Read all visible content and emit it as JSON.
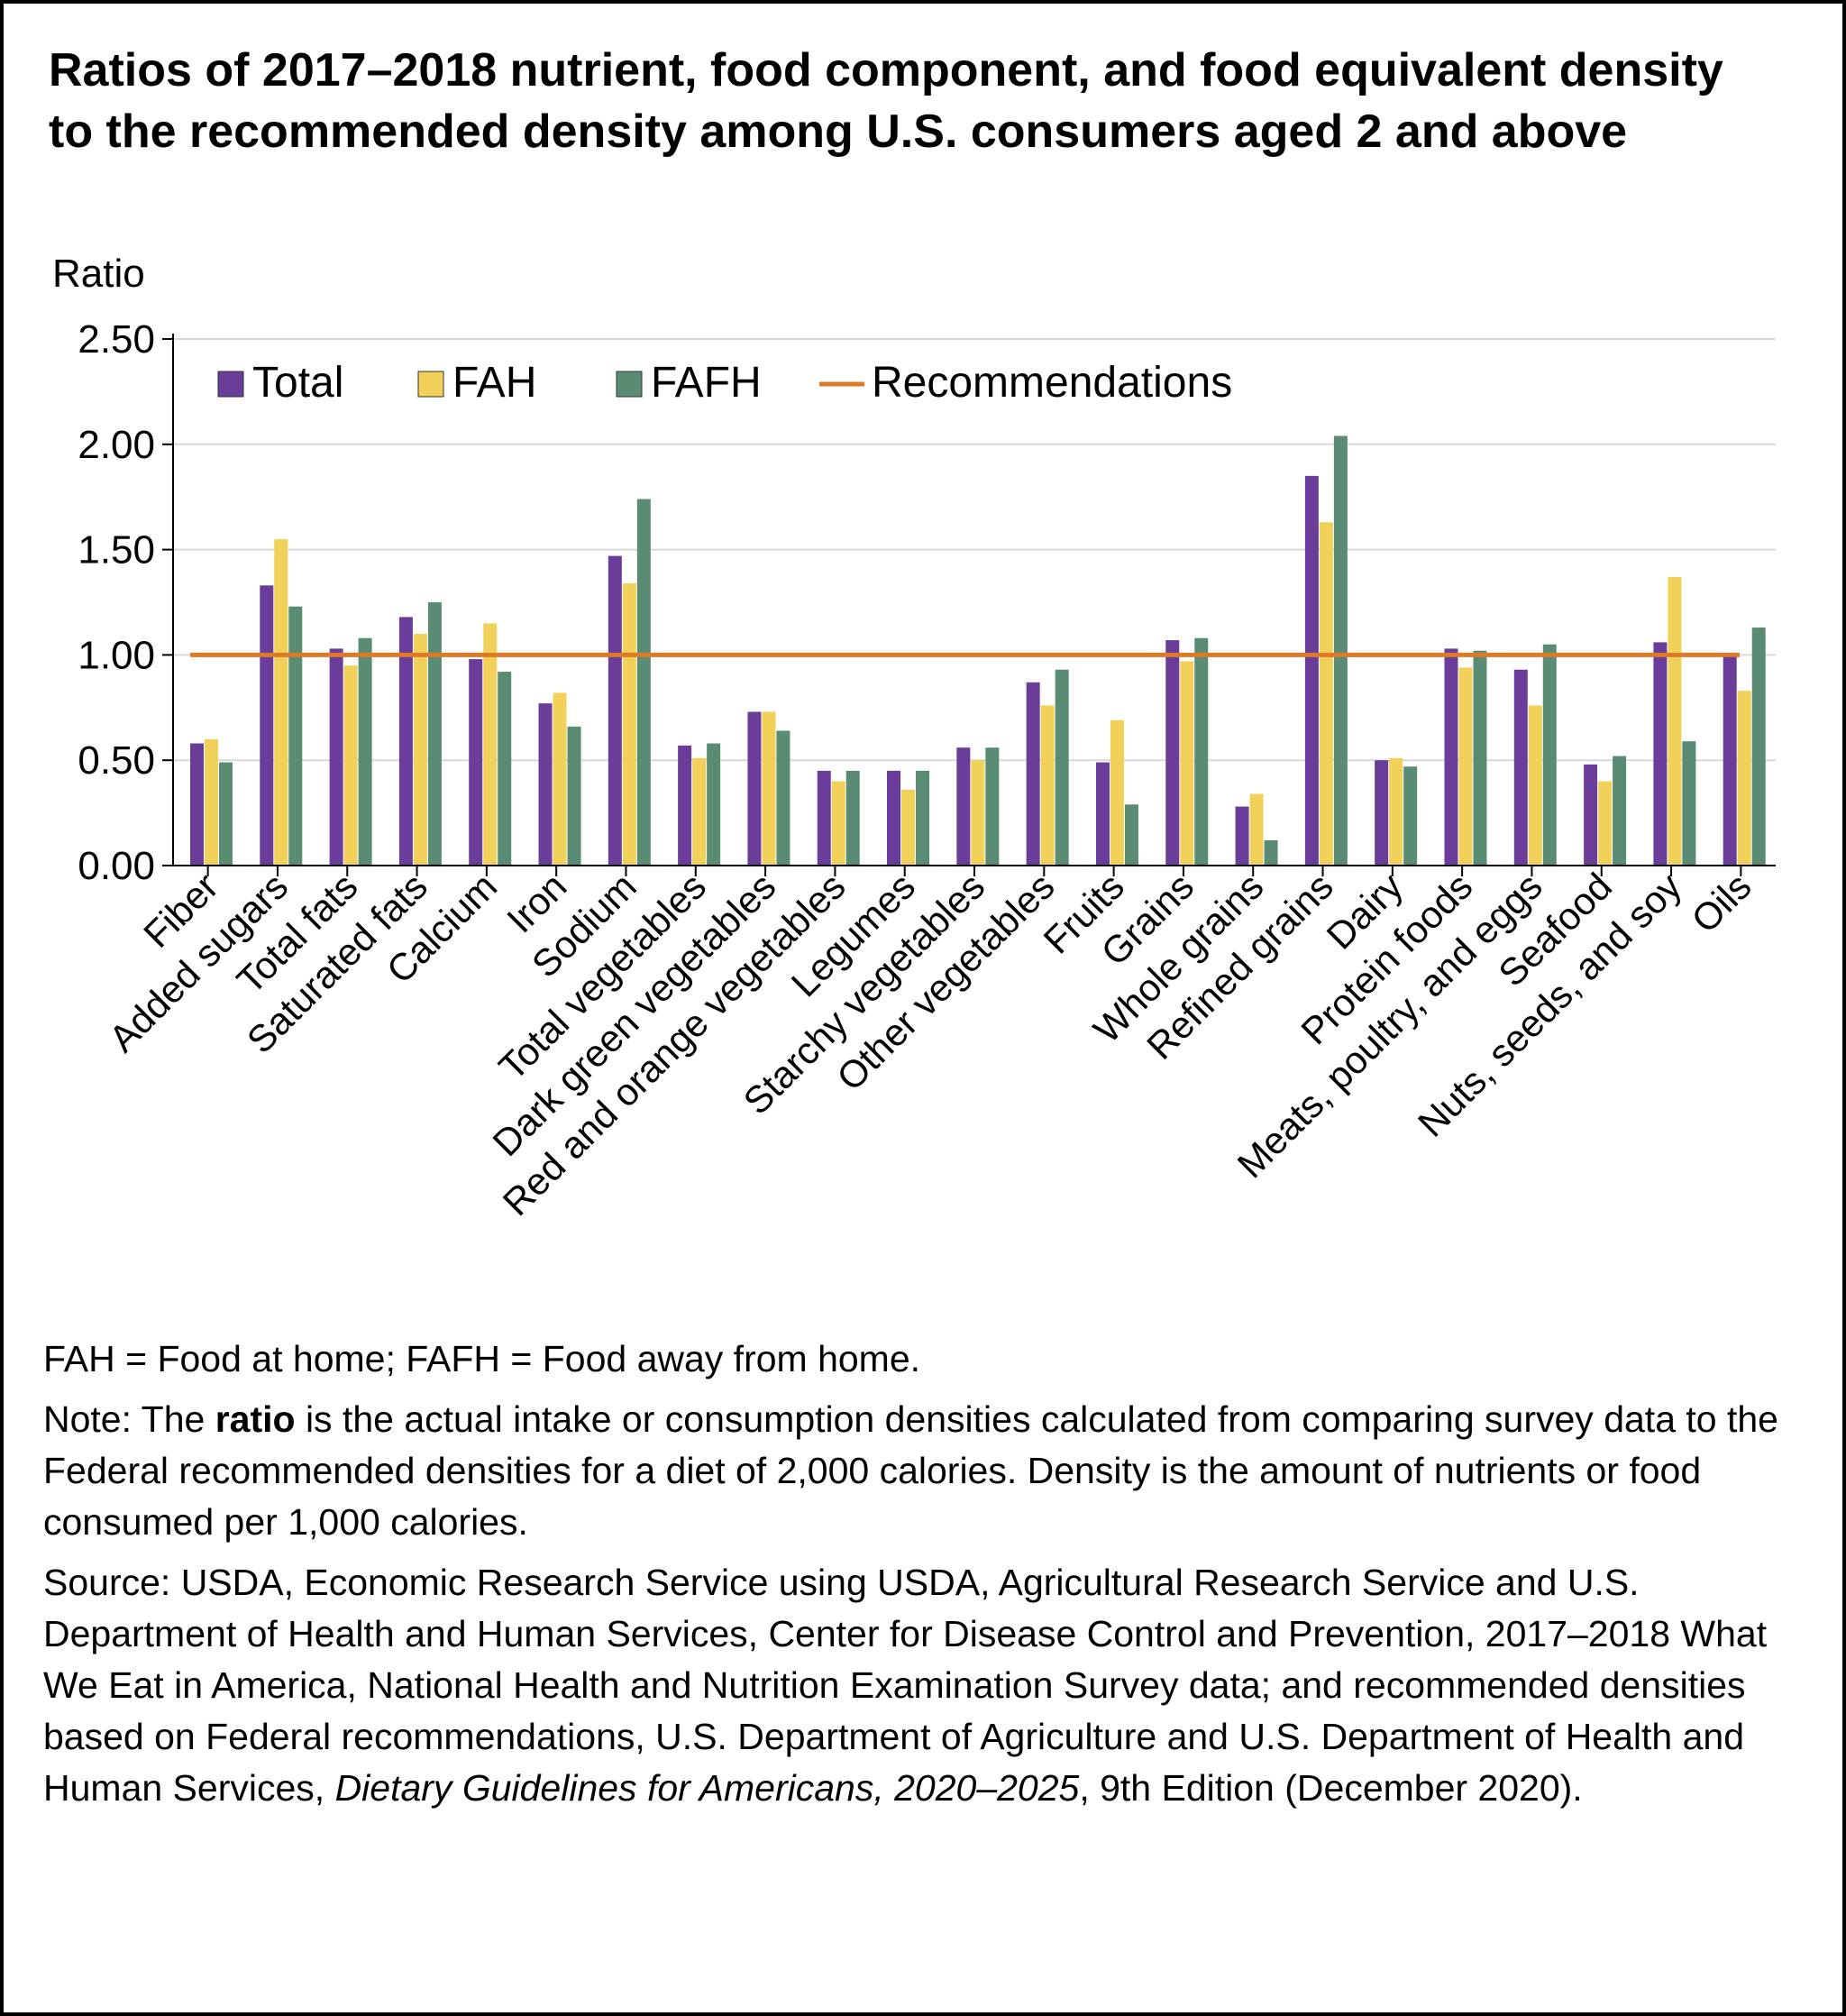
{
  "title": "Ratios of 2017–2018 nutrient, food component, and food equivalent density to the recommended density among U.S. consumers aged 2 and above",
  "colors": {
    "Total": "#6a3d9a",
    "FAH": "#f2d15a",
    "FAFH": "#5a8c74",
    "Recommendations": "#dd7a28",
    "grid": "#d9d9d9",
    "axis": "#000000"
  },
  "chart_data": {
    "type": "bar",
    "ylabel": "Ratio",
    "ylim": [
      0,
      2.5
    ],
    "yticks": [
      "0.00",
      "0.50",
      "1.00",
      "1.50",
      "2.00",
      "2.50"
    ],
    "grid": true,
    "legend_position": "top-left",
    "categories": [
      "Fiber",
      "Added sugars",
      "Total fats",
      "Saturated fats",
      "Calcium",
      "Iron",
      "Sodium",
      "Total vegetables",
      "Dark green vegetables",
      "Red and orange vegetables",
      "Legumes",
      "Starchy vegetables",
      "Other vegetables",
      "Fruits",
      "Grains",
      "Whole grains",
      "Refined grains",
      "Dairy",
      "Protein foods",
      "Meats, poultry, and eggs",
      "Seafood",
      "Nuts, seeds, and soy",
      "Oils"
    ],
    "series": [
      {
        "name": "Total",
        "values": [
          0.58,
          1.33,
          1.03,
          1.18,
          0.98,
          0.77,
          1.47,
          0.57,
          0.73,
          0.45,
          0.45,
          0.56,
          0.87,
          0.49,
          1.07,
          0.28,
          1.85,
          0.5,
          1.03,
          0.93,
          0.48,
          1.06,
          1.0
        ]
      },
      {
        "name": "FAH",
        "values": [
          0.6,
          1.55,
          0.95,
          1.1,
          1.15,
          0.82,
          1.34,
          0.51,
          0.73,
          0.4,
          0.36,
          0.5,
          0.76,
          0.69,
          0.97,
          0.34,
          1.63,
          0.51,
          0.94,
          0.76,
          0.4,
          1.37,
          0.83
        ]
      },
      {
        "name": "FAFH",
        "values": [
          0.49,
          1.23,
          1.08,
          1.25,
          0.92,
          0.66,
          1.74,
          0.58,
          0.64,
          0.45,
          0.45,
          0.56,
          0.93,
          0.29,
          1.08,
          0.12,
          2.04,
          0.47,
          1.02,
          1.05,
          0.52,
          0.59,
          1.13
        ]
      }
    ],
    "reference_line": {
      "name": "Recommendations",
      "value": 1.0
    }
  },
  "notes": {
    "abbrev": "FAH = Food at home; FAFH = Food away from home.",
    "note_prefix": "Note: The ",
    "note_bold": "ratio",
    "note_rest": " is the actual intake or consumption densities calculated from comparing survey data to the Federal recommended densities for a diet of 2,000 calories. Density is the amount of nutrients or food consumed per 1,000 calories.",
    "source_prefix": "Source: USDA, Economic Research Service using USDA, Agricultural Research Service and U.S. Department of Health and Human Services, Center for Disease Control and Prevention, 2017–2018 What We Eat in America, National Health and Nutrition Examination Survey data; and recommended densities based on Federal recommendations, U.S. Department of Agriculture and U.S. Department of Health and Human Services, ",
    "source_italic": "Dietary Guidelines for Americans, 2020–2025",
    "source_suffix": ", 9th Edition (December 2020)."
  }
}
